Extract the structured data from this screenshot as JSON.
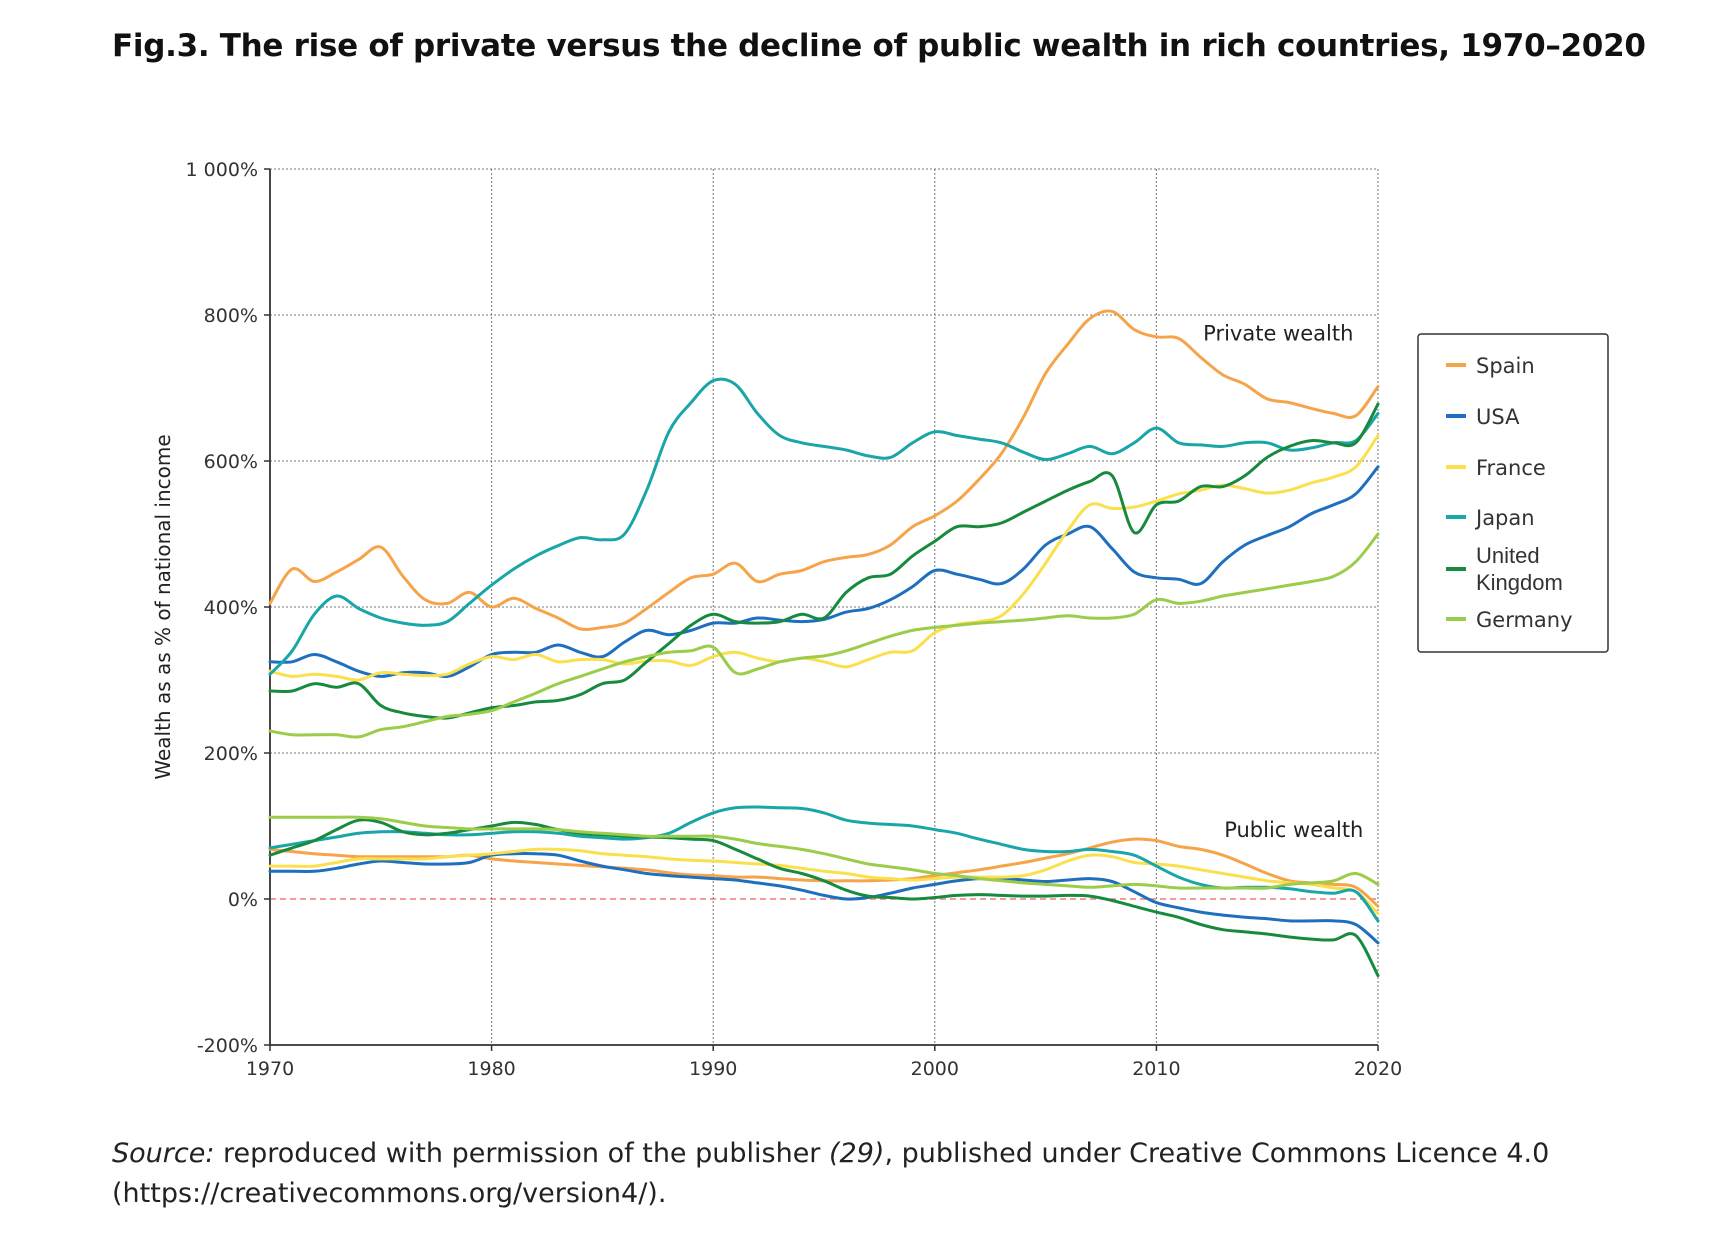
{
  "title": "Fig.3. The rise of private versus the decline of public wealth in rich countries, 1970–2020",
  "source": {
    "label": "Source:",
    "text_before_ref": " reproduced with permission of the publisher ",
    "ref": "(29)",
    "text_after_ref": ", published under Creative Commons Licence 4.0 (https://creativecommons.org/version4/)."
  },
  "chart_data": {
    "type": "line",
    "title": "",
    "xlabel": "",
    "ylabel": "Wealth as as % of national income",
    "xlim": [
      1970,
      2020
    ],
    "ylim": [
      -200,
      1000
    ],
    "x_ticks": [
      "1970",
      "1980",
      "1990",
      "2000",
      "2010",
      "2020"
    ],
    "y_ticks": [
      "-200%",
      "0%",
      "200%",
      "400%",
      "600%",
      "800%",
      "1 000%"
    ],
    "grid": true,
    "annotations": [
      "Private wealth",
      "Public wealth"
    ],
    "legend_position": "right",
    "legend": [
      "Spain",
      "USA",
      "France",
      "Japan",
      "United Kingdom",
      "Germany"
    ],
    "x": [
      1970,
      1971,
      1972,
      1973,
      1974,
      1975,
      1976,
      1977,
      1978,
      1979,
      1980,
      1981,
      1982,
      1983,
      1984,
      1985,
      1986,
      1987,
      1988,
      1989,
      1990,
      1991,
      1992,
      1993,
      1994,
      1995,
      1996,
      1997,
      1998,
      1999,
      2000,
      2001,
      2002,
      2003,
      2004,
      2005,
      2006,
      2007,
      2008,
      2009,
      2010,
      2011,
      2012,
      2013,
      2014,
      2015,
      2016,
      2017,
      2018,
      2019,
      2020
    ],
    "colors": {
      "Spain": "#f6a44a",
      "USA": "#1f6fbf",
      "France": "#f9e04c",
      "Japan": "#1aa5a8",
      "United Kingdom": "#188a3e",
      "Germany": "#9bcc4a"
    },
    "series": [
      {
        "name": "Spain",
        "group": "private",
        "values": [
          405,
          452,
          435,
          448,
          465,
          482,
          442,
          410,
          405,
          420,
          400,
          412,
          398,
          385,
          370,
          372,
          378,
          398,
          420,
          440,
          445,
          460,
          435,
          445,
          450,
          462,
          468,
          472,
          485,
          510,
          525,
          545,
          575,
          610,
          660,
          720,
          760,
          795,
          805,
          780,
          770,
          768,
          742,
          718,
          705,
          685,
          680,
          672,
          665,
          662,
          702
        ]
      },
      {
        "name": "USA",
        "group": "private",
        "values": [
          325,
          325,
          335,
          325,
          312,
          305,
          310,
          310,
          305,
          318,
          335,
          338,
          338,
          348,
          338,
          332,
          352,
          368,
          362,
          368,
          378,
          378,
          385,
          382,
          380,
          383,
          393,
          398,
          410,
          428,
          450,
          445,
          438,
          432,
          452,
          485,
          500,
          510,
          480,
          448,
          440,
          438,
          432,
          462,
          485,
          498,
          510,
          528,
          540,
          555,
          592
        ]
      },
      {
        "name": "France",
        "group": "private",
        "values": [
          312,
          305,
          308,
          305,
          300,
          310,
          308,
          306,
          308,
          322,
          332,
          328,
          335,
          325,
          328,
          328,
          322,
          326,
          326,
          320,
          332,
          338,
          330,
          325,
          330,
          325,
          318,
          328,
          338,
          340,
          365,
          376,
          380,
          388,
          418,
          460,
          505,
          540,
          535,
          537,
          545,
          555,
          560,
          567,
          562,
          556,
          560,
          570,
          578,
          592,
          635
        ]
      },
      {
        "name": "Japan",
        "group": "private",
        "values": [
          308,
          340,
          390,
          415,
          398,
          385,
          378,
          375,
          380,
          405,
          430,
          452,
          470,
          484,
          495,
          492,
          500,
          560,
          640,
          680,
          710,
          705,
          665,
          635,
          625,
          620,
          615,
          607,
          605,
          625,
          640,
          635,
          630,
          625,
          612,
          602,
          610,
          620,
          610,
          625,
          645,
          625,
          622,
          620,
          625,
          625,
          615,
          618,
          625,
          628,
          665
        ]
      },
      {
        "name": "United Kingdom",
        "group": "private",
        "values": [
          285,
          285,
          295,
          290,
          295,
          265,
          255,
          250,
          248,
          255,
          262,
          265,
          270,
          272,
          280,
          295,
          300,
          325,
          350,
          375,
          390,
          380,
          378,
          380,
          390,
          385,
          420,
          440,
          445,
          470,
          490,
          510,
          510,
          515,
          530,
          545,
          560,
          572,
          580,
          502,
          540,
          545,
          565,
          565,
          580,
          605,
          620,
          628,
          625,
          625,
          678
        ]
      },
      {
        "name": "Germany",
        "group": "private",
        "values": [
          230,
          225,
          225,
          225,
          222,
          232,
          236,
          243,
          250,
          253,
          258,
          270,
          282,
          295,
          305,
          315,
          325,
          332,
          338,
          340,
          345,
          310,
          315,
          325,
          330,
          333,
          340,
          350,
          360,
          368,
          372,
          375,
          378,
          380,
          382,
          385,
          388,
          385,
          385,
          390,
          410,
          405,
          408,
          415,
          420,
          425,
          430,
          435,
          442,
          462,
          500
        ]
      },
      {
        "name": "Spain",
        "group": "public",
        "values": [
          68,
          65,
          62,
          60,
          58,
          58,
          58,
          58,
          58,
          60,
          55,
          52,
          50,
          48,
          46,
          44,
          42,
          40,
          36,
          33,
          32,
          30,
          30,
          28,
          26,
          25,
          25,
          25,
          26,
          28,
          32,
          36,
          40,
          45,
          50,
          56,
          62,
          70,
          78,
          82,
          80,
          72,
          68,
          60,
          48,
          35,
          25,
          22,
          20,
          16,
          -10
        ]
      },
      {
        "name": "USA",
        "group": "public",
        "values": [
          38,
          38,
          38,
          42,
          48,
          52,
          50,
          48,
          48,
          50,
          60,
          62,
          62,
          60,
          52,
          45,
          40,
          35,
          32,
          30,
          28,
          26,
          22,
          18,
          12,
          5,
          0,
          2,
          8,
          15,
          20,
          25,
          28,
          28,
          26,
          24,
          26,
          28,
          24,
          10,
          -5,
          -12,
          -18,
          -22,
          -25,
          -27,
          -30,
          -30,
          -30,
          -35,
          -60
        ]
      },
      {
        "name": "France",
        "group": "public",
        "values": [
          45,
          45,
          45,
          50,
          55,
          55,
          55,
          55,
          58,
          60,
          62,
          65,
          68,
          68,
          66,
          62,
          60,
          58,
          55,
          53,
          52,
          50,
          48,
          46,
          42,
          38,
          35,
          30,
          28,
          26,
          28,
          30,
          30,
          30,
          32,
          40,
          52,
          60,
          58,
          50,
          48,
          45,
          40,
          35,
          30,
          25,
          22,
          20,
          15,
          10,
          -20
        ]
      },
      {
        "name": "Japan",
        "group": "public",
        "values": [
          70,
          75,
          80,
          85,
          90,
          92,
          92,
          90,
          88,
          88,
          90,
          92,
          92,
          90,
          86,
          84,
          82,
          84,
          90,
          105,
          118,
          125,
          126,
          125,
          124,
          118,
          108,
          104,
          102,
          100,
          95,
          90,
          82,
          75,
          68,
          65,
          65,
          68,
          65,
          60,
          45,
          30,
          20,
          15,
          16,
          16,
          14,
          10,
          8,
          10,
          -30
        ]
      },
      {
        "name": "United Kingdom",
        "group": "public",
        "values": [
          60,
          70,
          80,
          95,
          108,
          105,
          92,
          88,
          90,
          95,
          100,
          105,
          102,
          95,
          90,
          88,
          86,
          85,
          84,
          82,
          80,
          68,
          55,
          42,
          35,
          25,
          12,
          4,
          2,
          0,
          2,
          5,
          6,
          5,
          4,
          4,
          5,
          4,
          -2,
          -10,
          -18,
          -25,
          -35,
          -42,
          -45,
          -48,
          -52,
          -55,
          -56,
          -50,
          -105
        ]
      },
      {
        "name": "Germany",
        "group": "public",
        "values": [
          112,
          112,
          112,
          112,
          112,
          110,
          105,
          100,
          98,
          96,
          96,
          96,
          96,
          95,
          92,
          90,
          88,
          86,
          86,
          86,
          86,
          82,
          76,
          72,
          68,
          62,
          55,
          48,
          44,
          40,
          35,
          32,
          28,
          25,
          22,
          20,
          18,
          16,
          18,
          20,
          18,
          15,
          15,
          15,
          15,
          15,
          20,
          22,
          25,
          35,
          20
        ]
      }
    ]
  }
}
